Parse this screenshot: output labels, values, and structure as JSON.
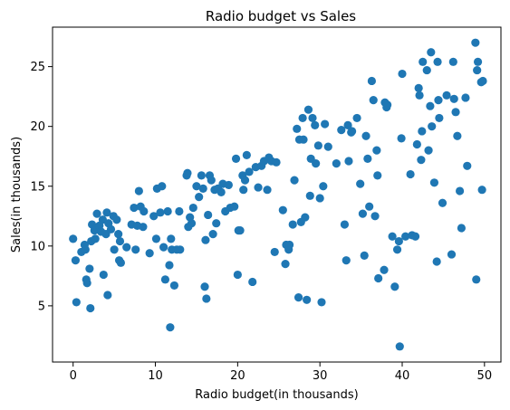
{
  "chart_data": {
    "type": "scatter",
    "title": "Radio budget vs Sales",
    "xlabel": "Radio budget(in thousands)",
    "ylabel": "Sales(in thousands)",
    "xlim": [
      -2.5,
      52
    ],
    "ylim": [
      0.3,
      28.3
    ],
    "xticks": [
      0,
      10,
      20,
      30,
      40,
      50
    ],
    "yticks": [
      5,
      10,
      15,
      20,
      25
    ],
    "grid": false,
    "legend": "none",
    "series": [
      {
        "color": "#1f77b4",
        "points": [
          [
            0.0,
            10.6
          ],
          [
            0.3,
            8.8
          ],
          [
            0.4,
            5.3
          ],
          [
            1.0,
            9.5
          ],
          [
            1.4,
            10.1
          ],
          [
            1.5,
            9.7
          ],
          [
            1.6,
            7.2
          ],
          [
            1.7,
            6.9
          ],
          [
            2.0,
            8.1
          ],
          [
            2.1,
            4.8
          ],
          [
            2.2,
            10.4
          ],
          [
            2.3,
            11.8
          ],
          [
            2.6,
            11.3
          ],
          [
            2.7,
            10.6
          ],
          [
            2.9,
            12.7
          ],
          [
            3.2,
            11.7
          ],
          [
            3.4,
            11.2
          ],
          [
            3.6,
            12.2
          ],
          [
            3.7,
            7.6
          ],
          [
            4.0,
            11.0
          ],
          [
            4.1,
            12.8
          ],
          [
            4.2,
            5.9
          ],
          [
            4.3,
            11.9
          ],
          [
            4.6,
            11.4
          ],
          [
            4.9,
            12.5
          ],
          [
            5.0,
            9.7
          ],
          [
            5.3,
            12.2
          ],
          [
            5.5,
            11.0
          ],
          [
            5.6,
            8.8
          ],
          [
            5.7,
            10.4
          ],
          [
            5.8,
            8.6
          ],
          [
            6.5,
            9.9
          ],
          [
            7.1,
            11.8
          ],
          [
            7.4,
            13.2
          ],
          [
            7.6,
            9.7
          ],
          [
            7.8,
            11.7
          ],
          [
            8.0,
            14.6
          ],
          [
            8.2,
            13.3
          ],
          [
            8.5,
            11.6
          ],
          [
            8.6,
            12.9
          ],
          [
            9.3,
            9.4
          ],
          [
            9.8,
            12.5
          ],
          [
            10.1,
            10.6
          ],
          [
            10.2,
            14.8
          ],
          [
            10.6,
            12.8
          ],
          [
            10.8,
            15.0
          ],
          [
            11.0,
            9.9
          ],
          [
            11.2,
            7.2
          ],
          [
            11.5,
            12.9
          ],
          [
            11.7,
            8.4
          ],
          [
            11.8,
            3.2
          ],
          [
            11.9,
            10.6
          ],
          [
            12.0,
            9.7
          ],
          [
            12.3,
            6.7
          ],
          [
            12.6,
            9.7
          ],
          [
            12.9,
            12.9
          ],
          [
            13.0,
            9.7
          ],
          [
            13.8,
            15.9
          ],
          [
            13.9,
            16.1
          ],
          [
            14.0,
            11.6
          ],
          [
            14.2,
            12.4
          ],
          [
            14.4,
            11.9
          ],
          [
            14.6,
            13.2
          ],
          [
            15.0,
            15.0
          ],
          [
            15.3,
            14.1
          ],
          [
            15.6,
            15.9
          ],
          [
            15.8,
            14.8
          ],
          [
            16.0,
            6.6
          ],
          [
            16.1,
            10.5
          ],
          [
            16.2,
            5.6
          ],
          [
            16.4,
            12.6
          ],
          [
            16.6,
            15.9
          ],
          [
            16.8,
            15.5
          ],
          [
            17.0,
            11.0
          ],
          [
            17.2,
            14.7
          ],
          [
            17.4,
            11.9
          ],
          [
            17.6,
            14.8
          ],
          [
            18.0,
            14.5
          ],
          [
            18.2,
            15.2
          ],
          [
            18.5,
            12.9
          ],
          [
            18.9,
            15.1
          ],
          [
            19.1,
            13.2
          ],
          [
            19.6,
            13.3
          ],
          [
            19.8,
            17.3
          ],
          [
            20.0,
            7.6
          ],
          [
            20.1,
            11.3
          ],
          [
            20.3,
            11.3
          ],
          [
            20.6,
            15.9
          ],
          [
            20.7,
            14.7
          ],
          [
            20.9,
            15.5
          ],
          [
            21.1,
            17.6
          ],
          [
            21.4,
            16.2
          ],
          [
            21.8,
            7.0
          ],
          [
            22.2,
            16.6
          ],
          [
            22.5,
            14.9
          ],
          [
            22.9,
            16.7
          ],
          [
            23.2,
            17.1
          ],
          [
            23.6,
            14.7
          ],
          [
            23.8,
            17.4
          ],
          [
            24.1,
            17.1
          ],
          [
            24.5,
            9.5
          ],
          [
            24.7,
            17.0
          ],
          [
            25.5,
            13.0
          ],
          [
            25.8,
            8.5
          ],
          [
            25.9,
            10.1
          ],
          [
            26.2,
            9.7
          ],
          [
            26.3,
            10.1
          ],
          [
            26.7,
            11.8
          ],
          [
            26.9,
            15.5
          ],
          [
            27.2,
            19.8
          ],
          [
            27.4,
            5.7
          ],
          [
            27.5,
            18.9
          ],
          [
            27.7,
            12.0
          ],
          [
            27.9,
            20.7
          ],
          [
            28.0,
            18.9
          ],
          [
            28.2,
            12.4
          ],
          [
            28.4,
            5.5
          ],
          [
            28.6,
            21.4
          ],
          [
            28.8,
            14.2
          ],
          [
            28.9,
            17.3
          ],
          [
            29.1,
            20.7
          ],
          [
            29.4,
            20.1
          ],
          [
            29.5,
            16.9
          ],
          [
            29.8,
            18.4
          ],
          [
            30.0,
            14.0
          ],
          [
            30.2,
            5.3
          ],
          [
            30.4,
            15.0
          ],
          [
            30.6,
            20.2
          ],
          [
            31.0,
            18.3
          ],
          [
            32.0,
            16.9
          ],
          [
            32.6,
            19.7
          ],
          [
            33.0,
            11.8
          ],
          [
            33.2,
            8.8
          ],
          [
            33.4,
            20.1
          ],
          [
            33.5,
            17.1
          ],
          [
            33.8,
            19.5
          ],
          [
            33.9,
            19.6
          ],
          [
            34.5,
            20.7
          ],
          [
            34.9,
            15.2
          ],
          [
            35.2,
            12.7
          ],
          [
            35.4,
            9.2
          ],
          [
            35.6,
            19.2
          ],
          [
            35.8,
            17.3
          ],
          [
            36.0,
            13.3
          ],
          [
            36.3,
            23.8
          ],
          [
            36.5,
            22.2
          ],
          [
            36.7,
            12.5
          ],
          [
            36.9,
            18.0
          ],
          [
            37.0,
            15.9
          ],
          [
            37.1,
            7.3
          ],
          [
            37.8,
            8.0
          ],
          [
            37.9,
            22.0
          ],
          [
            38.1,
            21.6
          ],
          [
            38.2,
            21.8
          ],
          [
            38.8,
            10.8
          ],
          [
            39.1,
            6.6
          ],
          [
            39.4,
            9.7
          ],
          [
            39.6,
            10.4
          ],
          [
            39.7,
            1.6
          ],
          [
            39.9,
            19.0
          ],
          [
            40.0,
            24.4
          ],
          [
            40.4,
            10.8
          ],
          [
            41.0,
            16.0
          ],
          [
            41.2,
            10.9
          ],
          [
            41.6,
            10.8
          ],
          [
            41.8,
            18.5
          ],
          [
            42.0,
            23.2
          ],
          [
            42.1,
            22.6
          ],
          [
            42.3,
            17.2
          ],
          [
            42.4,
            19.6
          ],
          [
            42.5,
            25.4
          ],
          [
            43.0,
            24.7
          ],
          [
            43.2,
            18.0
          ],
          [
            43.4,
            21.7
          ],
          [
            43.5,
            26.2
          ],
          [
            43.6,
            20.0
          ],
          [
            43.9,
            15.3
          ],
          [
            44.2,
            8.7
          ],
          [
            44.3,
            25.4
          ],
          [
            44.4,
            22.2
          ],
          [
            44.5,
            20.7
          ],
          [
            44.9,
            13.6
          ],
          [
            45.4,
            22.6
          ],
          [
            46.0,
            9.3
          ],
          [
            46.2,
            25.4
          ],
          [
            46.3,
            22.3
          ],
          [
            46.5,
            21.2
          ],
          [
            46.7,
            19.2
          ],
          [
            47.0,
            14.6
          ],
          [
            47.2,
            11.5
          ],
          [
            47.7,
            22.4
          ],
          [
            47.9,
            16.7
          ],
          [
            48.9,
            27.0
          ],
          [
            49.0,
            7.2
          ],
          [
            49.1,
            24.7
          ],
          [
            49.2,
            25.4
          ],
          [
            49.6,
            23.7
          ],
          [
            49.7,
            14.7
          ],
          [
            49.8,
            23.8
          ]
        ]
      }
    ]
  }
}
